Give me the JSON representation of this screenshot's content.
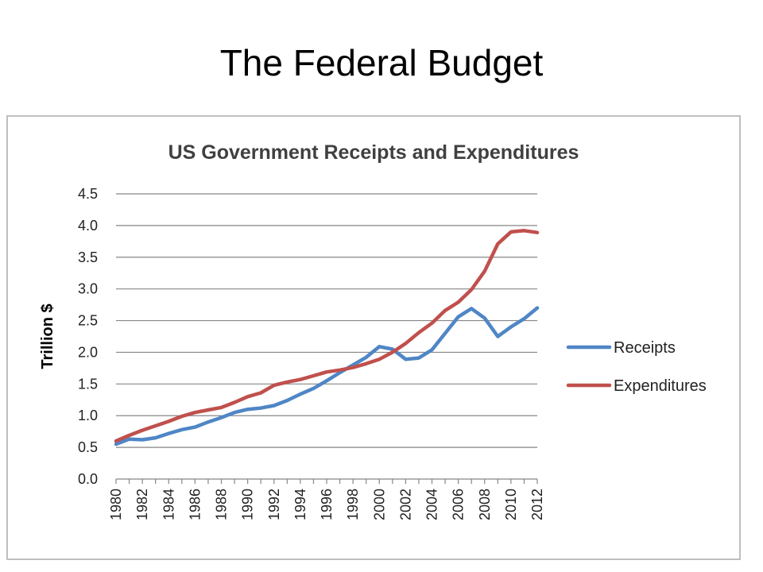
{
  "slide": {
    "title": "The Federal Budget"
  },
  "chart_data": {
    "type": "line",
    "title": "US Government Receipts and Expenditures",
    "xlabel": "",
    "ylabel": "Trillion $",
    "ylim": [
      0,
      4.5
    ],
    "yticks": [
      "0.0",
      "0.5",
      "1.0",
      "1.5",
      "2.0",
      "2.5",
      "3.0",
      "3.5",
      "4.0",
      "4.5"
    ],
    "x": [
      1980,
      1981,
      1982,
      1983,
      1984,
      1985,
      1986,
      1987,
      1988,
      1989,
      1990,
      1991,
      1992,
      1993,
      1994,
      1995,
      1996,
      1997,
      1998,
      1999,
      2000,
      2001,
      2002,
      2003,
      2004,
      2005,
      2006,
      2007,
      2008,
      2009,
      2010,
      2011,
      2012
    ],
    "xtick_labels": [
      "1980",
      "1982",
      "1984",
      "1986",
      "1988",
      "1990",
      "1992",
      "1994",
      "1996",
      "1998",
      "2000",
      "2002",
      "2004",
      "2006",
      "2008",
      "2010",
      "2012"
    ],
    "grid": true,
    "legend": "right",
    "series": [
      {
        "name": "Receipts",
        "color": "#4f86c6",
        "values": [
          0.55,
          0.63,
          0.62,
          0.65,
          0.72,
          0.78,
          0.82,
          0.9,
          0.97,
          1.05,
          1.1,
          1.12,
          1.16,
          1.24,
          1.34,
          1.43,
          1.55,
          1.68,
          1.8,
          1.92,
          2.09,
          2.05,
          1.89,
          1.91,
          2.04,
          2.3,
          2.56,
          2.69,
          2.54,
          2.25,
          2.4,
          2.53,
          2.7
        ]
      },
      {
        "name": "Expenditures",
        "color": "#c0504d",
        "values": [
          0.6,
          0.69,
          0.77,
          0.84,
          0.91,
          0.99,
          1.05,
          1.09,
          1.13,
          1.21,
          1.3,
          1.36,
          1.48,
          1.53,
          1.57,
          1.63,
          1.69,
          1.72,
          1.76,
          1.82,
          1.89,
          2.0,
          2.14,
          2.31,
          2.46,
          2.66,
          2.79,
          2.99,
          3.28,
          3.71,
          3.9,
          3.92,
          3.89
        ]
      }
    ]
  }
}
